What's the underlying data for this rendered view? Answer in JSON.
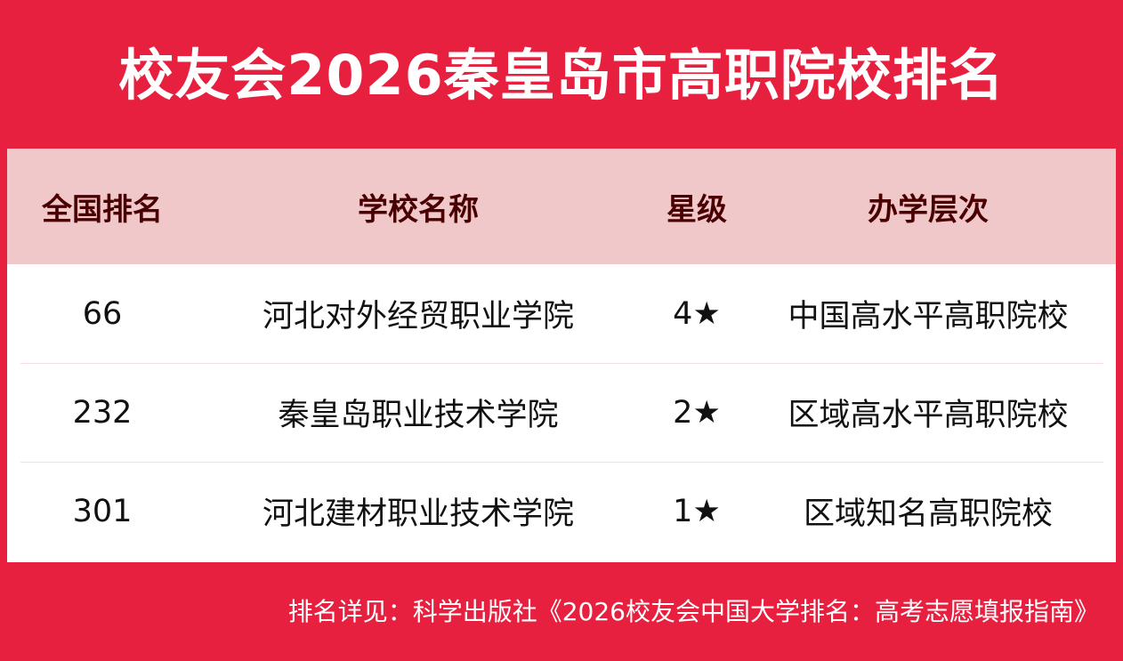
{
  "title": "校友会2026秦皇岛市高职院校排名",
  "table": {
    "headers": [
      "全国排名",
      "学校名称",
      "星级",
      "办学层次"
    ],
    "rows": [
      {
        "rank": "66",
        "name": "河北对外经贸职业学院",
        "stars": "4★",
        "level": "中国高水平高职院校"
      },
      {
        "rank": "232",
        "name": "秦皇岛职业技术学院",
        "stars": "2★",
        "level": "区域高水平高职院校"
      },
      {
        "rank": "301",
        "name": "河北建材职业技术学院",
        "stars": "1★",
        "level": "区域知名高职院校"
      }
    ]
  },
  "footer": "排名详见：科学出版社《2026校友会中国大学排名：高考志愿填报指南》",
  "colors": {
    "brand_red": "#E8203F",
    "header_bg": "#F0C8CA",
    "header_text": "#4A0000"
  }
}
